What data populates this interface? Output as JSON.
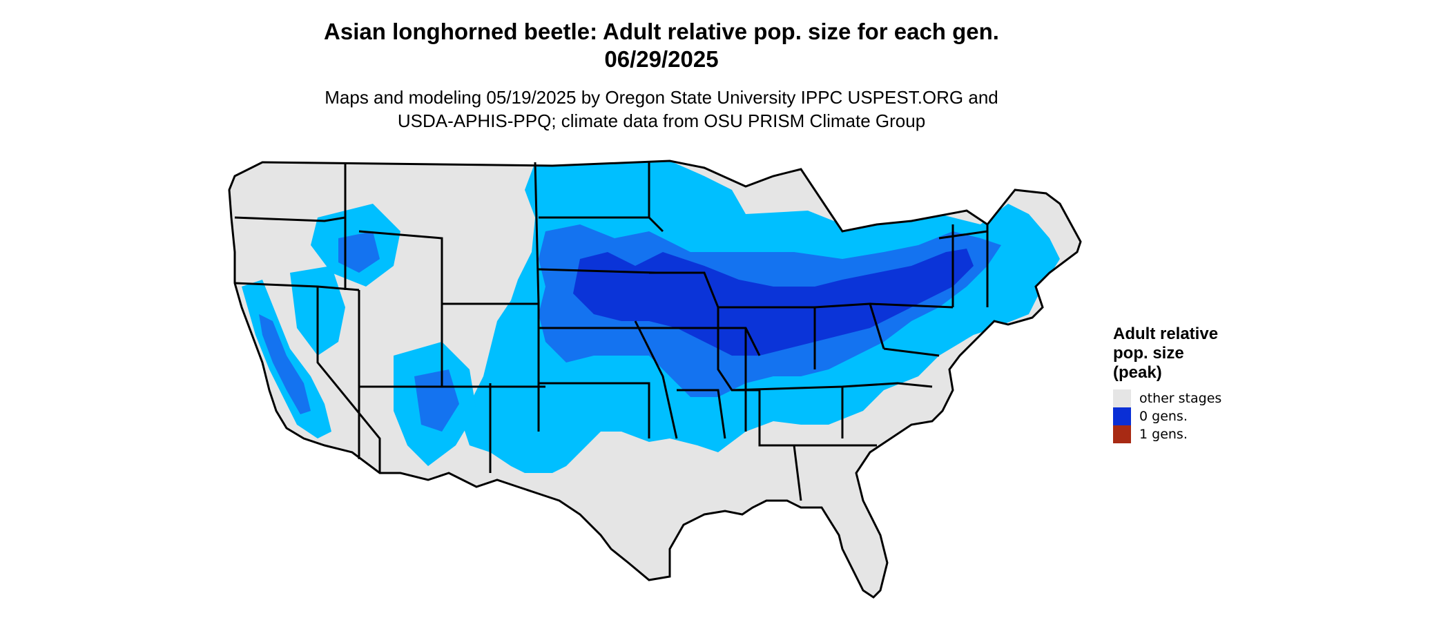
{
  "title": {
    "line1": "Asian longhorned beetle: Adult relative pop. size for each gen.",
    "line2": "06/29/2025"
  },
  "subtitle": {
    "line1": "Maps and modeling 05/19/2025 by Oregon State University IPPC USPEST.ORG and",
    "line2": "USDA-APHIS-PPQ; climate data from OSU PRISM Climate Group"
  },
  "legend": {
    "title_line1": "Adult relative",
    "title_line2": "pop. size",
    "title_line3": "(peak)",
    "items": [
      {
        "label": "other stages",
        "color": "#e5e5e5"
      },
      {
        "label": "0 gens.",
        "color": "#0a2fd6"
      },
      {
        "label": "1 gens.",
        "color": "#a82a14"
      }
    ]
  },
  "map": {
    "colors": {
      "land": "#e5e5e5",
      "light_blue": "#00bfff",
      "mid_blue": "#1473f0",
      "dark_blue": "#0b34d8",
      "border": "#000000"
    }
  }
}
